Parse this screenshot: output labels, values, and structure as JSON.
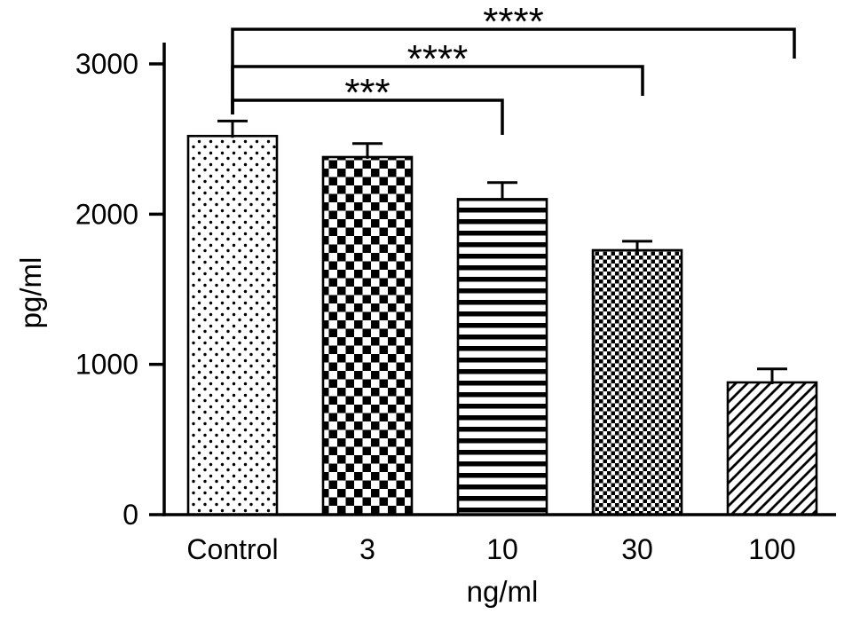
{
  "chart_data": {
    "type": "bar",
    "ylabel": "pg/ml",
    "xlabel": "ng/ml",
    "categories": [
      "Control",
      "3",
      "10",
      "30",
      "100"
    ],
    "values": [
      2520,
      2380,
      2100,
      1760,
      880
    ],
    "errors": [
      100,
      90,
      110,
      60,
      90
    ],
    "ylim": [
      0,
      3000
    ],
    "yticks": [
      0,
      1000,
      2000,
      3000
    ],
    "grid": false,
    "legend": "none",
    "patterns": [
      "dots",
      "checker",
      "hlines",
      "fine-checker",
      "diagonal"
    ],
    "significance": [
      {
        "from": "Control",
        "to": "10",
        "label": "***"
      },
      {
        "from": "Control",
        "to": "30",
        "label": "****"
      },
      {
        "from": "Control",
        "to": "100",
        "label": "****"
      }
    ],
    "colors": {
      "foreground": "#000000",
      "background": "#ffffff"
    }
  }
}
